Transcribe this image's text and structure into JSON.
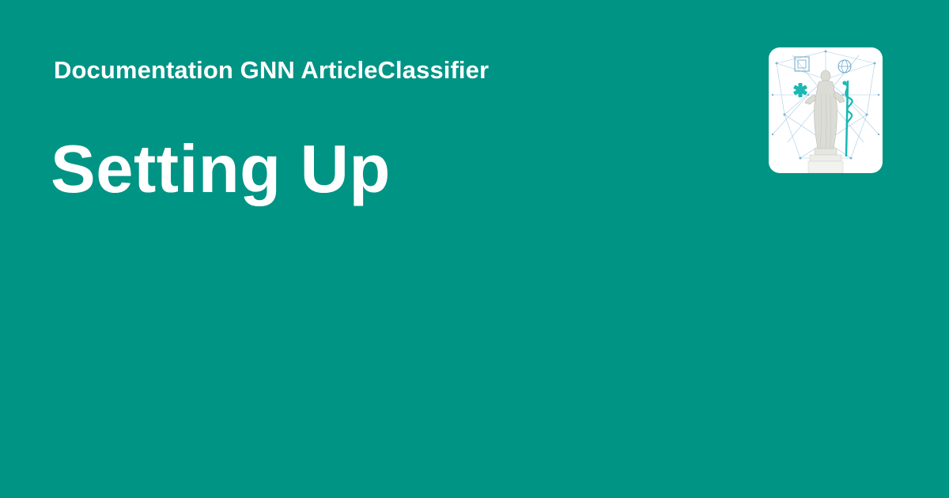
{
  "header": {
    "site_name": "Documentation GNN ArticleClassifier"
  },
  "main": {
    "page_title": "Setting Up"
  },
  "logo": {
    "icon": "statue-network-logo-icon"
  },
  "colors": {
    "background": "#009485",
    "text": "#ffffff",
    "logo_accent": "#19b8b4"
  }
}
